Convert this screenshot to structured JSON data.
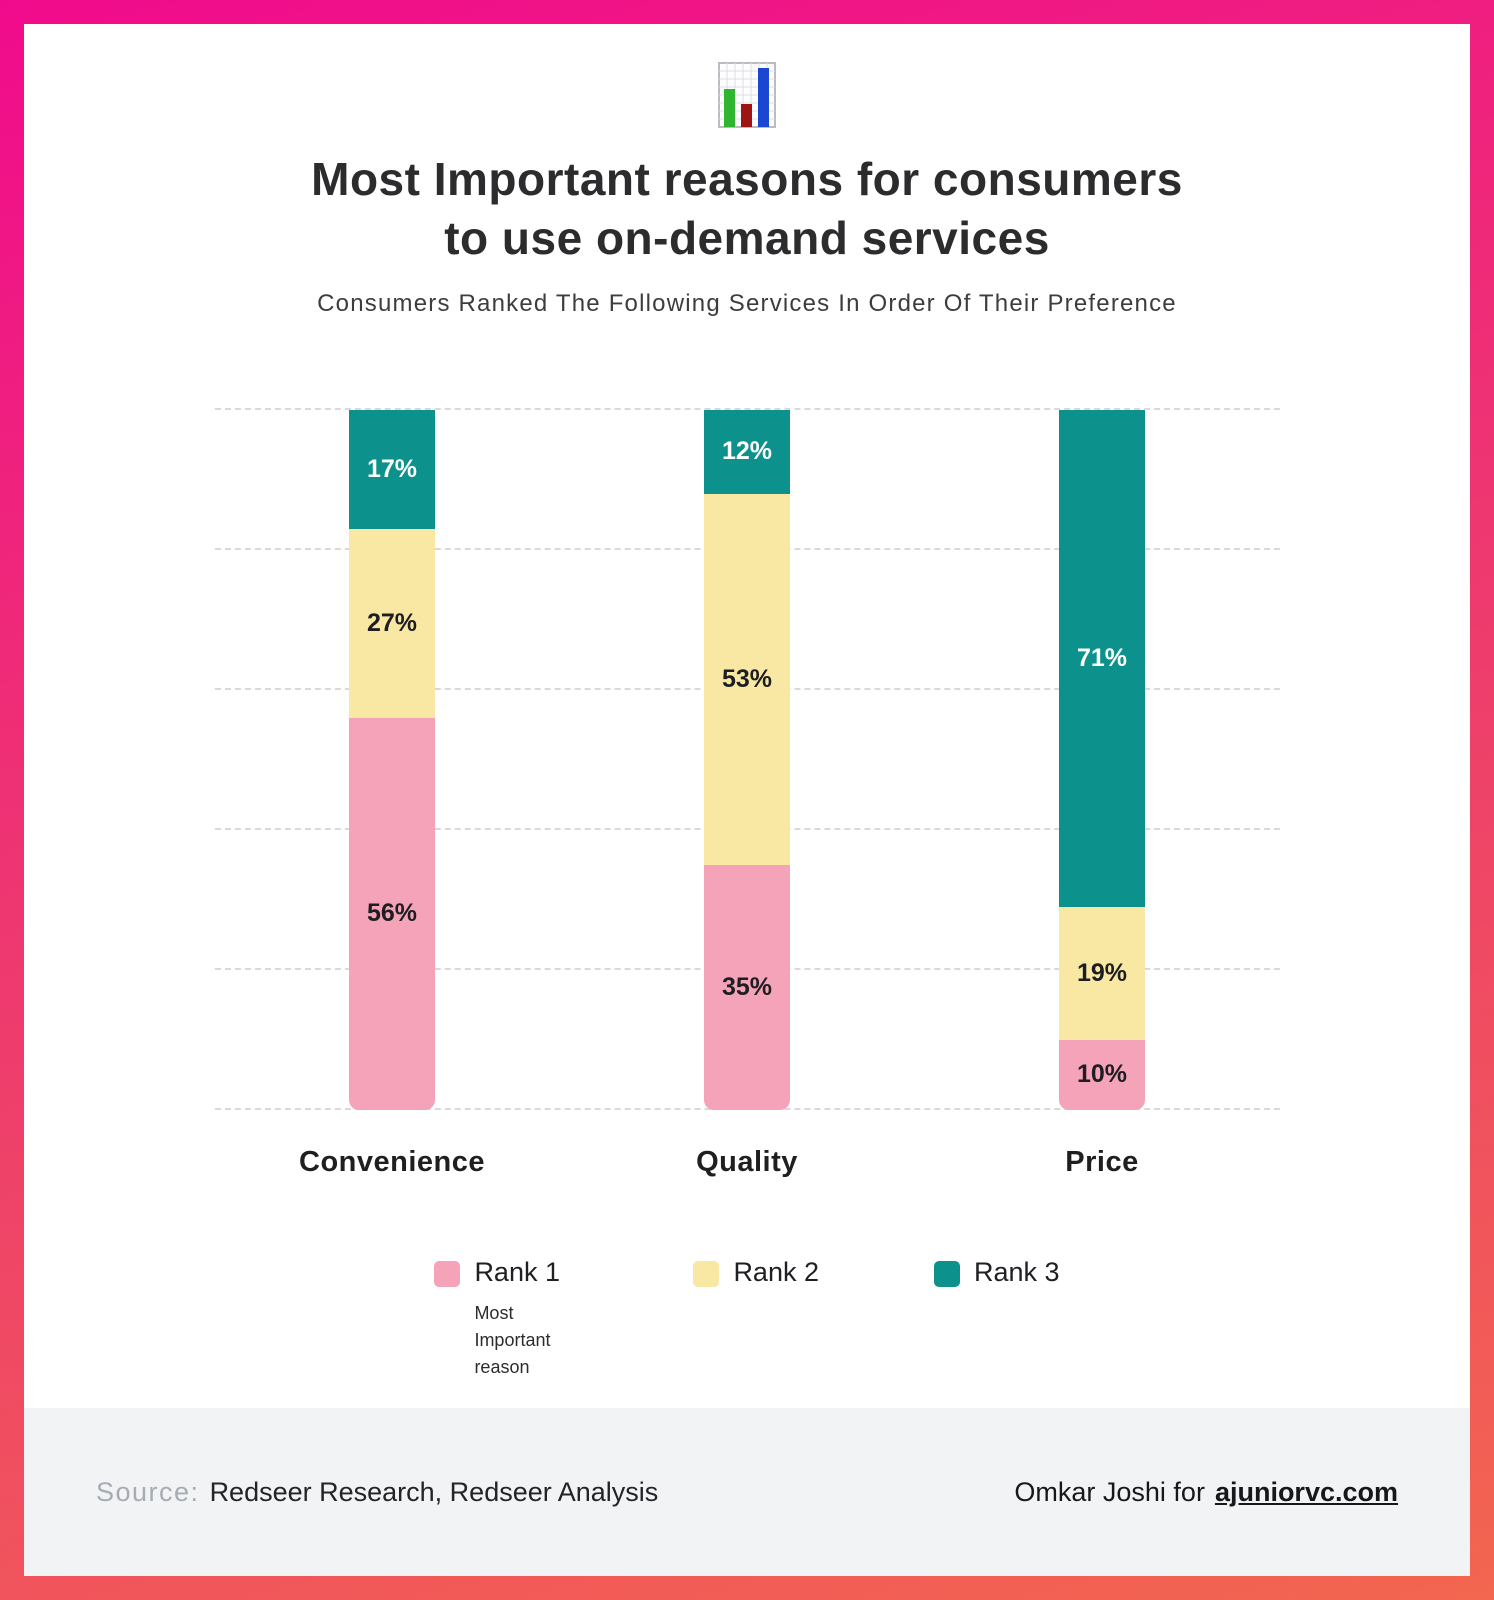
{
  "header": {
    "title_lines": [
      "Most Important reasons for consumers",
      "to use on-demand services"
    ],
    "subtitle": "Consumers Ranked The Following Services In Order Of Their Preference",
    "icon": "bar-chart-icon"
  },
  "chart_data": {
    "type": "bar",
    "stacked": true,
    "categories": [
      "Convenience",
      "Quality",
      "Price"
    ],
    "series": [
      {
        "name": "Rank 1",
        "note": "Most Important reason",
        "color": "#f5a3b8",
        "label_color": "#1e1e22",
        "values": [
          56,
          35,
          10
        ]
      },
      {
        "name": "Rank 2",
        "color": "#f8e8a3",
        "label_color": "#1e1e22",
        "values": [
          27,
          53,
          19
        ]
      },
      {
        "name": "Rank 3",
        "color": "#0d918d",
        "label_color": "#ffffff",
        "values": [
          17,
          12,
          71
        ]
      }
    ],
    "value_suffix": "%",
    "ylim": [
      0,
      100
    ],
    "gridline_step": 20,
    "grid": true,
    "legend_position": "bottom"
  },
  "footer": {
    "source_label": "Source:",
    "source_text": "Redseer Research, Redseer Analysis",
    "credit_text": "Omkar Joshi for",
    "credit_link": "ajuniorvc.com"
  },
  "colors": {
    "frame_gradient_top": "#f00b8c",
    "frame_gradient_bottom": "#f3664f",
    "footer_bg": "#f2f3f5",
    "gridline": "#d9d9dc"
  }
}
